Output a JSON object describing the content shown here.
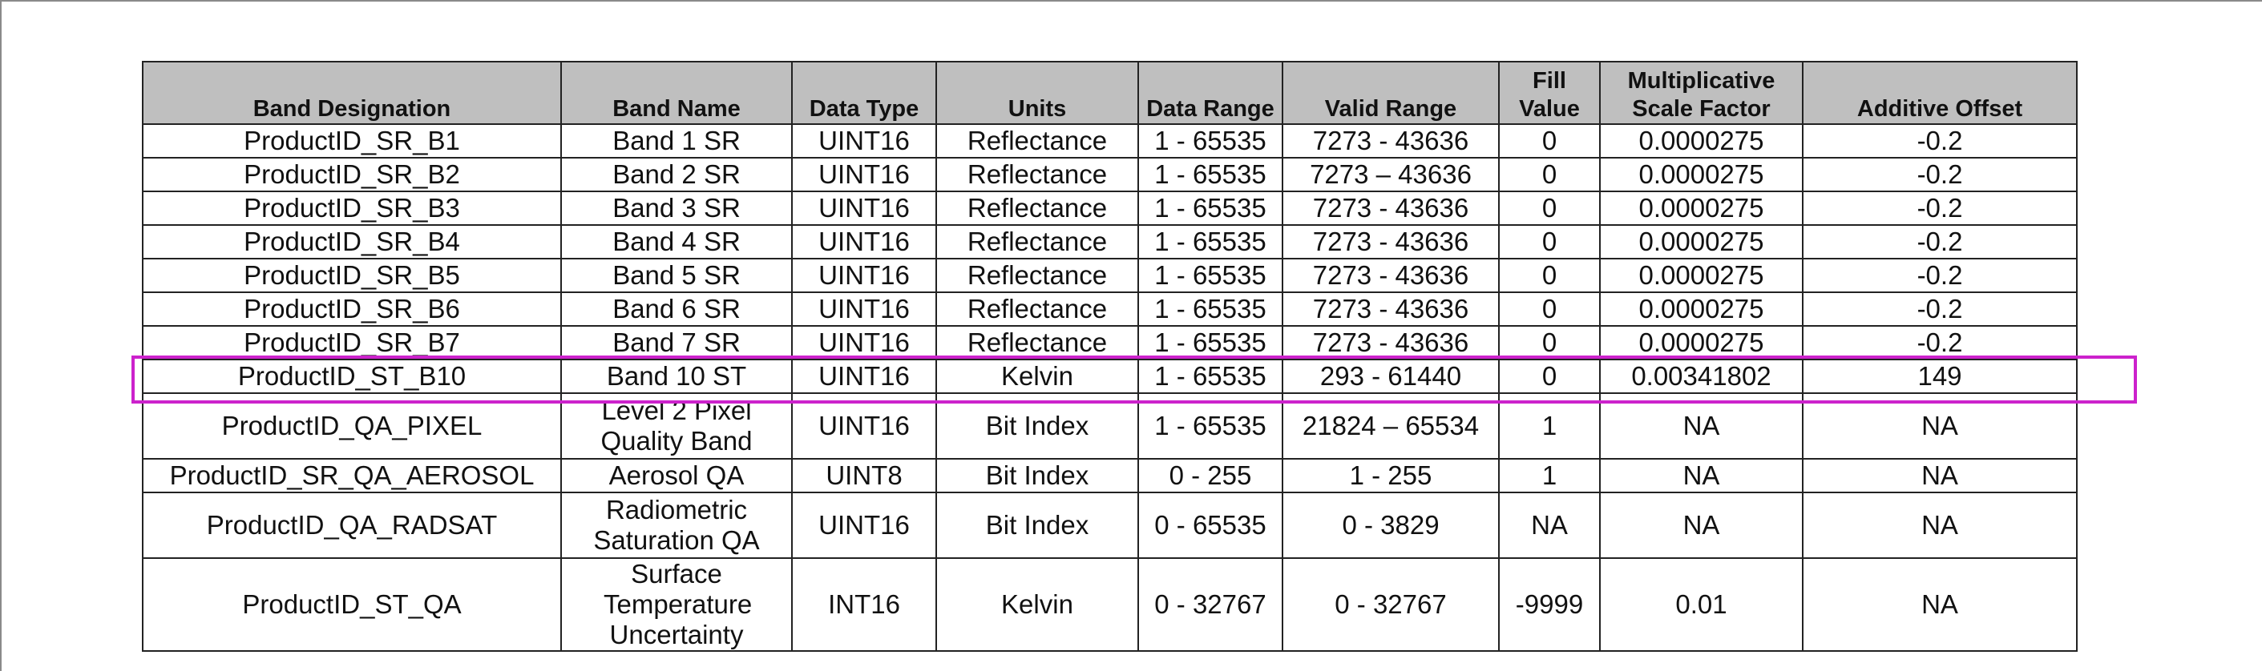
{
  "table": {
    "headers": [
      "Band Designation",
      "Band Name",
      "Data Type",
      "Units",
      "Data Range",
      "Valid Range",
      "Fill Value",
      "Multiplicative Scale Factor",
      "Additive Offset"
    ],
    "rows": [
      [
        "ProductID_SR_B1",
        "Band 1 SR",
        "UINT16",
        "Reflectance",
        "1 - 65535",
        "7273 - 43636",
        "0",
        "0.0000275",
        "-0.2"
      ],
      [
        "ProductID_SR_B2",
        "Band 2 SR",
        "UINT16",
        "Reflectance",
        "1 - 65535",
        "7273 – 43636",
        "0",
        "0.0000275",
        "-0.2"
      ],
      [
        "ProductID_SR_B3",
        "Band 3 SR",
        "UINT16",
        "Reflectance",
        "1 - 65535",
        "7273 - 43636",
        "0",
        "0.0000275",
        "-0.2"
      ],
      [
        "ProductID_SR_B4",
        "Band 4 SR",
        "UINT16",
        "Reflectance",
        "1 - 65535",
        "7273 - 43636",
        "0",
        "0.0000275",
        "-0.2"
      ],
      [
        "ProductID_SR_B5",
        "Band 5 SR",
        "UINT16",
        "Reflectance",
        "1 - 65535",
        "7273 - 43636",
        "0",
        "0.0000275",
        "-0.2"
      ],
      [
        "ProductID_SR_B6",
        "Band 6 SR",
        "UINT16",
        "Reflectance",
        "1 - 65535",
        "7273 - 43636",
        "0",
        "0.0000275",
        "-0.2"
      ],
      [
        "ProductID_SR_B7",
        "Band 7 SR",
        "UINT16",
        "Reflectance",
        "1 - 65535",
        "7273 - 43636",
        "0",
        "0.0000275",
        "-0.2"
      ],
      [
        "ProductID_ST_B10",
        "Band 10 ST",
        "UINT16",
        "Kelvin",
        "1 - 65535",
        "293 - 61440",
        "0",
        "0.00341802",
        "149"
      ],
      [
        "ProductID_QA_PIXEL",
        "Level 2 Pixel Quality Band",
        "UINT16",
        "Bit Index",
        "1 - 65535",
        "21824 – 65534",
        "1",
        "NA",
        "NA"
      ],
      [
        "ProductID_SR_QA_AEROSOL",
        "Aerosol QA",
        "UINT8",
        "Bit Index",
        "0 - 255",
        "1 - 255",
        "1",
        "NA",
        "NA"
      ],
      [
        "ProductID_QA_RADSAT",
        "Radiometric Saturation QA",
        "UINT16",
        "Bit Index",
        "0 - 65535",
        "0 - 3829",
        "NA",
        "NA",
        "NA"
      ],
      [
        "ProductID_ST_QA",
        "Surface Temperature Uncertainty",
        "INT16",
        "Kelvin",
        "0 - 32767",
        "0 - 32767",
        "-9999",
        "0.01",
        "NA"
      ]
    ]
  },
  "highlight": {
    "row_index": 7,
    "color": "#cc22cc"
  }
}
